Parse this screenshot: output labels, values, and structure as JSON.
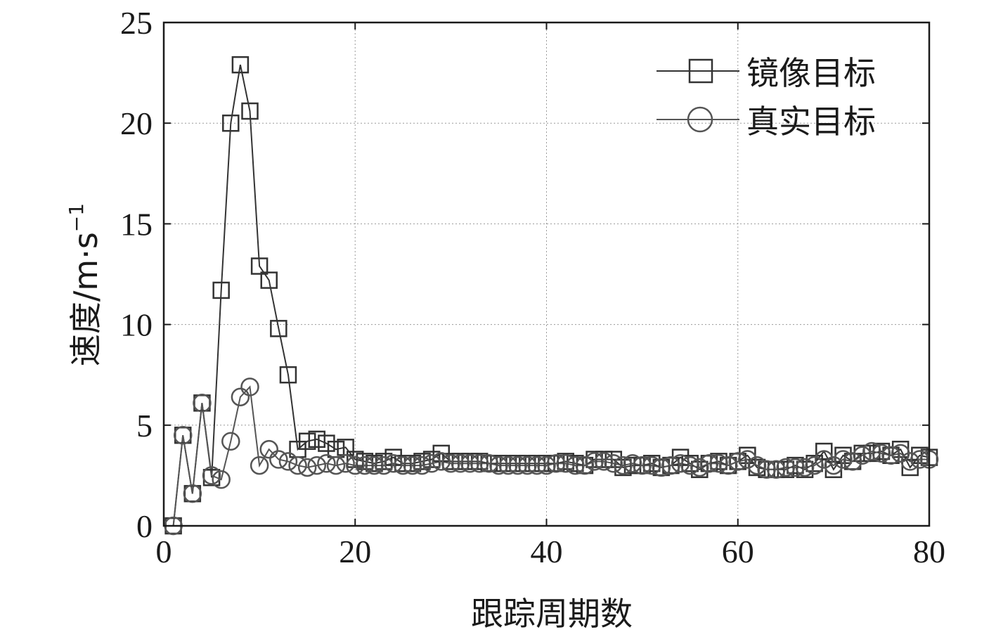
{
  "chart_data": {
    "type": "line",
    "xlabel": "跟踪周期数",
    "ylabel_main": "速度/m·s",
    "ylabel_exponent": "−1",
    "xlim": [
      0,
      80
    ],
    "ylim": [
      0,
      25
    ],
    "xticks": [
      0,
      20,
      40,
      60,
      80
    ],
    "yticks": [
      0,
      5,
      10,
      15,
      20,
      25
    ],
    "grid": true,
    "legend_position": "top-right",
    "series": [
      {
        "name": "镜像目标",
        "marker": "square",
        "color": "#333333",
        "x": [
          1,
          2,
          3,
          4,
          5,
          6,
          7,
          8,
          9,
          10,
          11,
          12,
          13,
          14,
          15,
          16,
          17,
          18,
          19,
          20,
          21,
          22,
          23,
          24,
          25,
          26,
          27,
          28,
          29,
          30,
          31,
          32,
          33,
          34,
          35,
          36,
          37,
          38,
          39,
          40,
          41,
          42,
          43,
          44,
          45,
          46,
          47,
          48,
          49,
          50,
          51,
          52,
          53,
          54,
          55,
          56,
          57,
          58,
          59,
          60,
          61,
          62,
          63,
          64,
          65,
          66,
          67,
          68,
          69,
          70,
          71,
          72,
          73,
          74,
          75,
          76,
          77,
          78,
          79,
          80
        ],
        "y": [
          0,
          4.5,
          1.6,
          6.1,
          2.4,
          11.7,
          20.0,
          22.9,
          20.6,
          12.9,
          12.2,
          9.8,
          7.5,
          3.8,
          4.2,
          4.3,
          4.1,
          3.8,
          3.9,
          3.3,
          3.2,
          3.1,
          3.2,
          3.4,
          3.1,
          3.1,
          3.2,
          3.3,
          3.6,
          3.2,
          3.2,
          3.2,
          3.2,
          3.1,
          3.1,
          3.1,
          3.1,
          3.1,
          3.1,
          3.1,
          3.1,
          3.2,
          3.1,
          3.0,
          3.3,
          3.3,
          3.3,
          2.9,
          3.0,
          3.0,
          3.1,
          2.9,
          3.0,
          3.4,
          3.1,
          2.8,
          3.1,
          3.2,
          3.0,
          3.2,
          3.5,
          2.9,
          2.8,
          2.8,
          2.8,
          3.0,
          2.8,
          3.1,
          3.7,
          2.8,
          3.5,
          3.2,
          3.6,
          3.6,
          3.7,
          3.5,
          3.8,
          2.9,
          3.5,
          3.4
        ]
      },
      {
        "name": "真实目标",
        "marker": "circle",
        "color": "#555555",
        "x": [
          1,
          2,
          3,
          4,
          5,
          6,
          7,
          8,
          9,
          10,
          11,
          12,
          13,
          14,
          15,
          16,
          17,
          18,
          19,
          20,
          21,
          22,
          23,
          24,
          25,
          26,
          27,
          28,
          29,
          30,
          31,
          32,
          33,
          34,
          35,
          36,
          37,
          38,
          39,
          40,
          41,
          42,
          43,
          44,
          45,
          46,
          47,
          48,
          49,
          50,
          51,
          52,
          53,
          54,
          55,
          56,
          57,
          58,
          59,
          60,
          61,
          62,
          63,
          64,
          65,
          66,
          67,
          68,
          69,
          70,
          71,
          72,
          73,
          74,
          75,
          76,
          77,
          78,
          79,
          80
        ],
        "y": [
          0,
          4.5,
          1.6,
          6.1,
          2.5,
          2.3,
          4.2,
          6.4,
          6.9,
          3.0,
          3.8,
          3.3,
          3.2,
          3.0,
          2.9,
          3.0,
          3.1,
          3.0,
          3.1,
          3.0,
          3.0,
          3.0,
          3.0,
          3.1,
          3.0,
          3.0,
          3.0,
          3.1,
          3.2,
          3.1,
          3.1,
          3.1,
          3.1,
          3.1,
          3.0,
          3.0,
          3.0,
          3.0,
          3.0,
          3.0,
          3.1,
          3.1,
          3.0,
          3.0,
          3.2,
          3.2,
          3.1,
          3.0,
          3.1,
          3.0,
          3.0,
          2.9,
          3.0,
          3.1,
          3.0,
          2.9,
          3.1,
          3.1,
          3.0,
          3.2,
          3.3,
          3.0,
          2.8,
          2.8,
          2.9,
          2.9,
          2.9,
          3.0,
          3.3,
          3.0,
          3.3,
          3.2,
          3.5,
          3.7,
          3.6,
          3.5,
          3.6,
          3.2,
          3.3,
          3.3
        ]
      }
    ]
  }
}
